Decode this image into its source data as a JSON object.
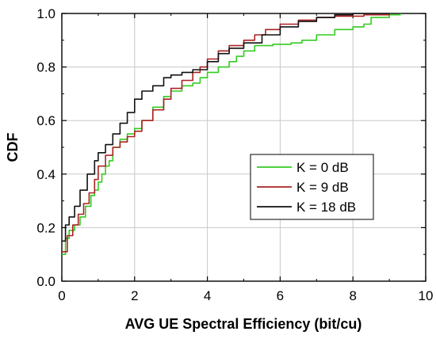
{
  "chart_data": {
    "type": "line",
    "xlabel": "AVG UE Spectral Efficiency (bit/cu)",
    "ylabel": "CDF",
    "xlim": [
      0,
      10
    ],
    "ylim": [
      0,
      1
    ],
    "xticks": [
      "0",
      "2",
      "4",
      "6",
      "8",
      "10"
    ],
    "yticks": [
      "0.0",
      "0.2",
      "0.4",
      "0.6",
      "0.8",
      "1.0"
    ],
    "grid": true,
    "legend_position": "center-right",
    "series": [
      {
        "name": "K = 0 dB",
        "color": "#33cc22",
        "points": [
          [
            0.0,
            0.1
          ],
          [
            0.1,
            0.16
          ],
          [
            0.2,
            0.19
          ],
          [
            0.35,
            0.21
          ],
          [
            0.5,
            0.24
          ],
          [
            0.65,
            0.28
          ],
          [
            0.8,
            0.32
          ],
          [
            0.9,
            0.34
          ],
          [
            1.0,
            0.37
          ],
          [
            1.1,
            0.4
          ],
          [
            1.2,
            0.43
          ],
          [
            1.3,
            0.45
          ],
          [
            1.4,
            0.5
          ],
          [
            1.6,
            0.53
          ],
          [
            1.8,
            0.55
          ],
          [
            2.0,
            0.57
          ],
          [
            2.2,
            0.6
          ],
          [
            2.5,
            0.65
          ],
          [
            2.8,
            0.69
          ],
          [
            3.0,
            0.71
          ],
          [
            3.3,
            0.73
          ],
          [
            3.6,
            0.74
          ],
          [
            3.8,
            0.76
          ],
          [
            4.0,
            0.78
          ],
          [
            4.3,
            0.8
          ],
          [
            4.6,
            0.82
          ],
          [
            4.8,
            0.84
          ],
          [
            5.0,
            0.86
          ],
          [
            5.3,
            0.88
          ],
          [
            5.8,
            0.885
          ],
          [
            6.3,
            0.89
          ],
          [
            6.6,
            0.9
          ],
          [
            7.0,
            0.92
          ],
          [
            7.5,
            0.94
          ],
          [
            8.0,
            0.95
          ],
          [
            8.3,
            0.96
          ],
          [
            8.5,
            0.985
          ],
          [
            9.0,
            0.995
          ],
          [
            9.3,
            1.0
          ]
        ]
      },
      {
        "name": "K = 9 dB",
        "color": "#aa2222",
        "points": [
          [
            0.0,
            0.11
          ],
          [
            0.15,
            0.17
          ],
          [
            0.3,
            0.21
          ],
          [
            0.45,
            0.25
          ],
          [
            0.6,
            0.29
          ],
          [
            0.75,
            0.33
          ],
          [
            0.9,
            0.38
          ],
          [
            1.0,
            0.43
          ],
          [
            1.2,
            0.47
          ],
          [
            1.4,
            0.5
          ],
          [
            1.6,
            0.52
          ],
          [
            1.8,
            0.54
          ],
          [
            2.0,
            0.56
          ],
          [
            2.2,
            0.6
          ],
          [
            2.5,
            0.64
          ],
          [
            2.8,
            0.68
          ],
          [
            3.0,
            0.72
          ],
          [
            3.3,
            0.75
          ],
          [
            3.6,
            0.78
          ],
          [
            3.8,
            0.8
          ],
          [
            4.0,
            0.83
          ],
          [
            4.3,
            0.86
          ],
          [
            4.6,
            0.88
          ],
          [
            5.0,
            0.9
          ],
          [
            5.3,
            0.92
          ],
          [
            5.6,
            0.94
          ],
          [
            6.0,
            0.96
          ],
          [
            6.5,
            0.975
          ],
          [
            7.0,
            0.985
          ],
          [
            7.5,
            0.99
          ],
          [
            8.3,
            0.995
          ],
          [
            9.0,
            1.0
          ]
        ]
      },
      {
        "name": "K = 18 dB",
        "color": "#111111",
        "points": [
          [
            0.0,
            0.15
          ],
          [
            0.1,
            0.21
          ],
          [
            0.2,
            0.24
          ],
          [
            0.35,
            0.28
          ],
          [
            0.5,
            0.34
          ],
          [
            0.7,
            0.4
          ],
          [
            0.9,
            0.45
          ],
          [
            1.0,
            0.48
          ],
          [
            1.2,
            0.51
          ],
          [
            1.4,
            0.55
          ],
          [
            1.6,
            0.59
          ],
          [
            1.8,
            0.63
          ],
          [
            2.0,
            0.68
          ],
          [
            2.2,
            0.71
          ],
          [
            2.5,
            0.73
          ],
          [
            2.8,
            0.76
          ],
          [
            3.0,
            0.77
          ],
          [
            3.3,
            0.78
          ],
          [
            3.6,
            0.79
          ],
          [
            4.0,
            0.82
          ],
          [
            4.3,
            0.85
          ],
          [
            4.6,
            0.87
          ],
          [
            5.0,
            0.89
          ],
          [
            5.5,
            0.92
          ],
          [
            6.0,
            0.95
          ],
          [
            6.5,
            0.97
          ],
          [
            7.0,
            0.985
          ],
          [
            7.5,
            0.995
          ],
          [
            8.0,
            1.0
          ],
          [
            9.0,
            1.0
          ]
        ]
      }
    ]
  }
}
